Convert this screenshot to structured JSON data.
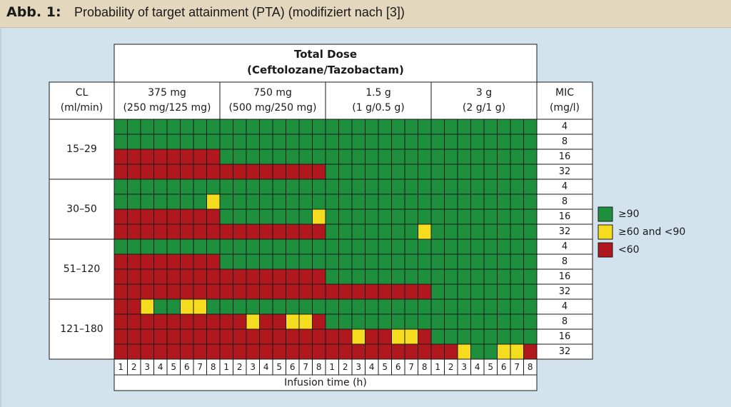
{
  "header": {
    "label": "Abb. 1:",
    "title": "Probability of target attainment (PTA) (modifiziert nach [3])"
  },
  "colors": {
    "green": "#1e8f3d",
    "yellow": "#f6dc1e",
    "red": "#b0181e",
    "header_bg": "#e3d7bd",
    "page_bg": "#d3e3ee"
  },
  "chart_data": {
    "type": "heatmap",
    "column_group_title": [
      "Total Dose",
      "(Ceftolozane/Tazobactam)"
    ],
    "row_header": [
      "CL",
      "(ml/min)"
    ],
    "mic_header": [
      "MIC",
      "(mg/l)"
    ],
    "doses": [
      {
        "line1": "375 mg",
        "line2": "(250 mg/125 mg)"
      },
      {
        "line1": "750 mg",
        "line2": "(500 mg/250 mg)"
      },
      {
        "line1": "1.5 g",
        "line2": "(1 g/0.5 g)"
      },
      {
        "line1": "3 g",
        "line2": "(2 g/1 g)"
      }
    ],
    "infusion_times": [
      "1",
      "2",
      "3",
      "4",
      "5",
      "6",
      "7",
      "8"
    ],
    "xlabel": "Infusion time (h)",
    "cl_groups": [
      "15–29",
      "30–50",
      "51–120",
      "121–180"
    ],
    "mic_values": [
      "4",
      "8",
      "16",
      "32"
    ],
    "legend": [
      {
        "code": "G",
        "label": "≥90"
      },
      {
        "code": "Y",
        "label": "≥60 and <90"
      },
      {
        "code": "R",
        "label": "<60"
      }
    ],
    "cells": [
      "GGGGGGGGGGGGGGGGGGGGGGGGGGGGGGGG",
      "GGGGGGGGGGGGGGGGGGGGGGGGGGGGGGGG",
      "RRRRRRRRGGGGGGGGGGGGGGGGGGGGGGGG",
      "RRRRRRRRRRRRRRRRGGGGGGGGGGGGGGGG",
      "GGGGGGGGGGGGGGGGGGGGGGGGGGGGGGGG",
      "GGGGGGGYGGGGGGGGGGGGGGGGGGGGGGGG",
      "RRRRRRRRGGGGGGGYGGGGGGGGGGGGGGGG",
      "RRRRRRRRRRRRRRRRGGGGGGGYGGGGGGGG",
      "GGGGGGGGGGGGGGGGGGGGGGGGGGGGGGGG",
      "RRRRRRRRGGGGGGGGGGGGGGGGGGGGGGGG",
      "RRRRRRRRRRRRRRRRGGGGGGGGGGGGGGGG",
      "RRRRRRRRRRRRRRRRRRRRRRRRGGGGGGGG",
      "RRYGGYYGGGGGGGGGGGGGGGGGGGGGGGGG",
      "RRRRRRRRRRYRRYYRGGGGGGGGGGGGGGGG",
      "RRRRRRRRRRRRRRRRRRYRRYYRGGGGGGGG",
      "RRRRRRRRRRRRRRRRRRRRRRRRRRYGGYYR"
    ]
  }
}
